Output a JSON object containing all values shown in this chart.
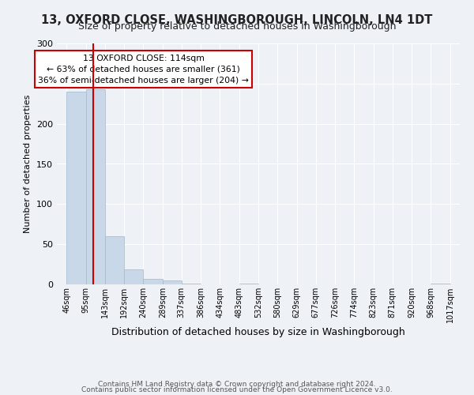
{
  "title": "13, OXFORD CLOSE, WASHINGBOROUGH, LINCOLN, LN4 1DT",
  "subtitle": "Size of property relative to detached houses in Washingborough",
  "xlabel": "Distribution of detached houses by size in Washingborough",
  "ylabel": "Number of detached properties",
  "bar_edges": [
    46,
    95,
    143,
    192,
    240,
    289,
    337,
    386,
    434,
    483,
    532,
    580,
    629,
    677,
    726,
    774,
    823,
    871,
    920,
    968,
    1017
  ],
  "bar_heights": [
    240,
    243,
    60,
    19,
    7,
    5,
    1,
    0,
    0,
    1,
    0,
    0,
    0,
    0,
    0,
    0,
    0,
    0,
    0,
    1
  ],
  "bar_color": "#c8d8e8",
  "bar_edgecolor": "#a0b8d0",
  "vline_x": 114,
  "vline_color": "#cc0000",
  "vline_lw": 1.5,
  "annotation_line1": "13 OXFORD CLOSE: 114sqm",
  "annotation_line2": "← 63% of detached houses are smaller (361)",
  "annotation_line3": "36% of semi-detached houses are larger (204) →",
  "annotation_box_edgecolor": "#cc0000",
  "annotation_box_facecolor": "#ffffff",
  "ylim": [
    0,
    300
  ],
  "yticks": [
    0,
    50,
    100,
    150,
    200,
    250,
    300
  ],
  "tick_labels": [
    "46sqm",
    "95sqm",
    "143sqm",
    "192sqm",
    "240sqm",
    "289sqm",
    "337sqm",
    "386sqm",
    "434sqm",
    "483sqm",
    "532sqm",
    "580sqm",
    "629sqm",
    "677sqm",
    "726sqm",
    "774sqm",
    "823sqm",
    "871sqm",
    "920sqm",
    "968sqm",
    "1017sqm"
  ],
  "footer1": "Contains HM Land Registry data © Crown copyright and database right 2024.",
  "footer2": "Contains public sector information licensed under the Open Government Licence v3.0.",
  "background_color": "#eef2f7",
  "grid_color": "#ffffff",
  "title_fontsize": 10.5,
  "subtitle_fontsize": 9,
  "xlabel_fontsize": 9,
  "ylabel_fontsize": 8,
  "tick_fontsize": 7,
  "footer_fontsize": 6.5
}
